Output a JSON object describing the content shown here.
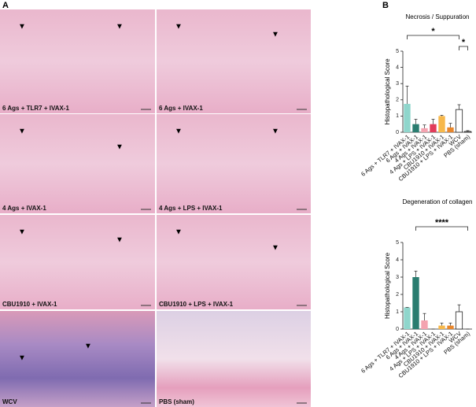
{
  "panel_a": {
    "label": "A",
    "images": [
      {
        "caption": "6 Ags + TLR7 + IVAX-1"
      },
      {
        "caption": "6 Ags + IVAX-1"
      },
      {
        "caption": "4 Ags + IVAX-1"
      },
      {
        "caption": "4 Ags + LPS + IVAX-1"
      },
      {
        "caption": "CBU1910 + IVAX-1"
      },
      {
        "caption": "CBU1910 + LPS + IVAX-1"
      },
      {
        "caption": "WCV"
      },
      {
        "caption": "PBS (sham)"
      }
    ]
  },
  "panel_b": {
    "label": "B"
  },
  "chart_data": [
    {
      "type": "bar",
      "title": "Necrosis / Suppuration",
      "y_label": "Histopathological Score",
      "categories": [
        "6 Ags + TLR7 + IVAX-1",
        "6 Ags + IVAX-1",
        "4 Ags + IVAX-1",
        "4 Ags + LPS + IVAX-1",
        "CBU1910 + IVAX-1",
        "CBU1910 + LPS + IVAX-1",
        "WCV",
        "PBS (sham)"
      ],
      "values": [
        1.75,
        0.5,
        0.25,
        0.5,
        1.0,
        0.3,
        1.4,
        0.05
      ],
      "errors": [
        1.1,
        0.3,
        0.2,
        0.3,
        0.05,
        0.25,
        0.3,
        0.05
      ],
      "colors": [
        "#8fd6cc",
        "#2a7d70",
        "#f4a3b0",
        "#e23c5a",
        "#f7b84a",
        "#e8862a",
        "#ffffff",
        "#ffffff"
      ],
      "ylim": [
        0,
        5
      ],
      "yticks": [
        0,
        1,
        2,
        3,
        4,
        5
      ],
      "annotations": [
        {
          "label": "*",
          "from": 0,
          "to": 6
        },
        {
          "label": "*",
          "from": 6,
          "to": 7
        }
      ]
    },
    {
      "type": "bar",
      "title": "Degeneration of collagen",
      "y_label": "Histopathological Score",
      "categories": [
        "6 Ags + TLR7 + IVAX-1",
        "6 Ags + IVAX-1",
        "4 Ags + IVAX-1",
        "4 Ags + LPS + IVAX-1",
        "CBU1910 + IVAX-1",
        "CBU1910 + LPS + IVAX-1",
        "WCV",
        "PBS (sham)"
      ],
      "values": [
        1.25,
        3.0,
        0.5,
        0.0,
        0.2,
        0.2,
        1.0,
        0.0
      ],
      "errors": [
        0,
        0.35,
        0.4,
        0,
        0.15,
        0.15,
        0.4,
        0
      ],
      "colors": [
        "#8fd6cc",
        "#2a7d70",
        "#f4a3b0",
        "#e23c5a",
        "#f7b84a",
        "#e8862a",
        "#ffffff",
        "#ffffff"
      ],
      "ylim": [
        0,
        5
      ],
      "yticks": [
        0,
        1,
        2,
        3,
        4,
        5
      ],
      "annotations": [
        {
          "label": "****",
          "from": 1,
          "to": 7
        }
      ]
    }
  ]
}
